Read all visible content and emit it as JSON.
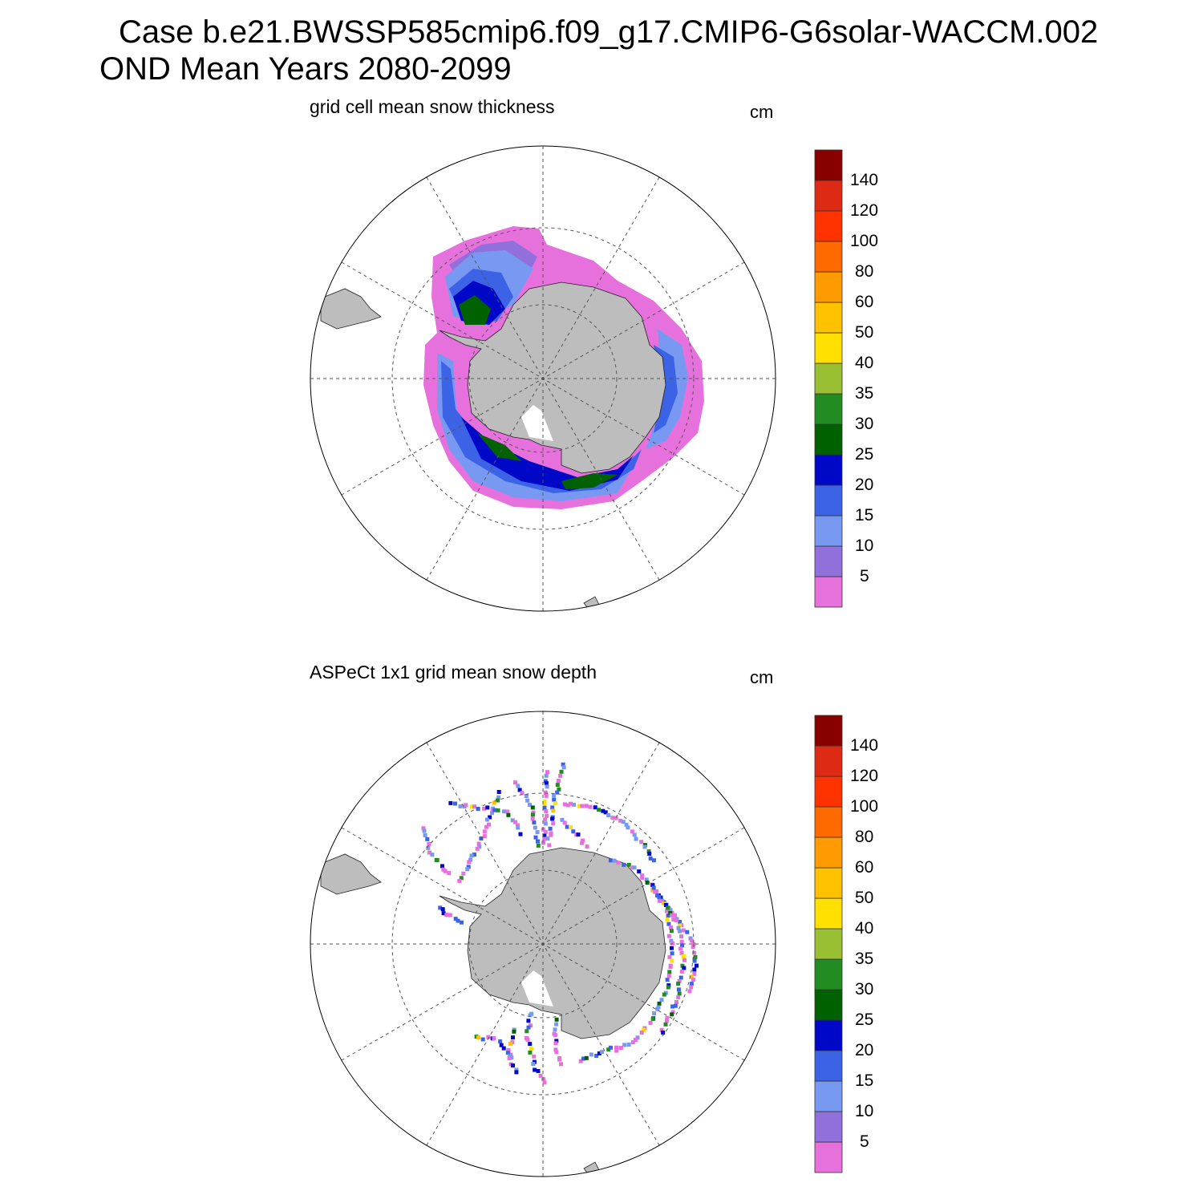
{
  "title_line1": "Case b.e21.BWSSP585cmip6.f09_g17.CMIP6-G6solar-WACCM.002",
  "title_line2": "OND Mean   Years 2080-2099",
  "panels": [
    {
      "subtitle": "grid cell mean snow thickness",
      "units": "cm"
    },
    {
      "subtitle": "ASPeCt 1x1 grid mean snow depth",
      "units": "cm"
    }
  ],
  "colorbar": {
    "levels": [
      "5",
      "10",
      "15",
      "20",
      "25",
      "30",
      "35",
      "40",
      "50",
      "60",
      "80",
      "100",
      "120",
      "140"
    ],
    "colors": [
      "#e771dc",
      "#9270dc",
      "#7799f2",
      "#3c62e6",
      "#0008c8",
      "#006100",
      "#228b22",
      "#99bf33",
      "#ffe000",
      "#ffc100",
      "#ff9a00",
      "#ff6a00",
      "#ff3300",
      "#dd2a14",
      "#880000"
    ]
  },
  "map_colors": {
    "land": "#bdbdbd",
    "ocean": "#ffffff",
    "grid": "#555555"
  }
}
